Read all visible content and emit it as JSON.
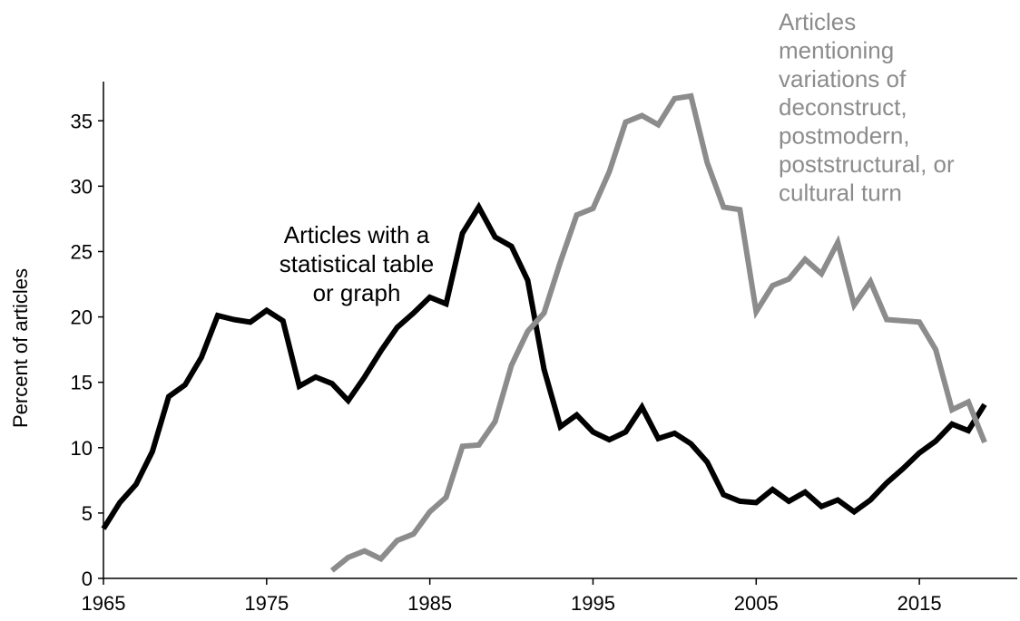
{
  "chart_data": {
    "type": "line",
    "ylabel": "Percent of articles",
    "xlabel": "",
    "xlim": [
      1965,
      2021
    ],
    "ylim": [
      0,
      38
    ],
    "x_ticks": [
      1965,
      1975,
      1985,
      1995,
      2005,
      2015
    ],
    "y_ticks": [
      0,
      5,
      10,
      15,
      20,
      25,
      30,
      35
    ],
    "grid": false,
    "legend": "none",
    "series": [
      {
        "color": "#000000",
        "points": [
          [
            1965,
            3.8
          ],
          [
            1966,
            5.8
          ],
          [
            1967,
            7.2
          ],
          [
            1968,
            9.7
          ],
          [
            1969,
            13.9
          ],
          [
            1970,
            14.8
          ],
          [
            1971,
            16.9
          ],
          [
            1972,
            20.1
          ],
          [
            1973,
            19.8
          ],
          [
            1974,
            19.6
          ],
          [
            1975,
            20.5
          ],
          [
            1976,
            19.7
          ],
          [
            1977,
            14.7
          ],
          [
            1978,
            15.4
          ],
          [
            1979,
            14.9
          ],
          [
            1980,
            13.6
          ],
          [
            1981,
            15.4
          ],
          [
            1982,
            17.4
          ],
          [
            1983,
            19.2
          ],
          [
            1984,
            20.3
          ],
          [
            1985,
            21.5
          ],
          [
            1986,
            21.0
          ],
          [
            1987,
            26.4
          ],
          [
            1988,
            28.4
          ],
          [
            1989,
            26.1
          ],
          [
            1990,
            25.4
          ],
          [
            1991,
            22.8
          ],
          [
            1992,
            16.0
          ],
          [
            1993,
            11.6
          ],
          [
            1994,
            12.5
          ],
          [
            1995,
            11.2
          ],
          [
            1996,
            10.6
          ],
          [
            1997,
            11.2
          ],
          [
            1998,
            13.1
          ],
          [
            1999,
            10.7
          ],
          [
            2000,
            11.1
          ],
          [
            2001,
            10.3
          ],
          [
            2002,
            8.9
          ],
          [
            2003,
            6.4
          ],
          [
            2004,
            5.9
          ],
          [
            2005,
            5.8
          ],
          [
            2006,
            6.8
          ],
          [
            2007,
            5.9
          ],
          [
            2008,
            6.6
          ],
          [
            2009,
            5.5
          ],
          [
            2010,
            6.0
          ],
          [
            2011,
            5.1
          ],
          [
            2012,
            6.0
          ],
          [
            2013,
            7.3
          ],
          [
            2014,
            8.4
          ],
          [
            2015,
            9.6
          ],
          [
            2016,
            10.5
          ],
          [
            2017,
            11.8
          ],
          [
            2018,
            11.3
          ],
          [
            2019,
            13.3
          ]
        ]
      },
      {
        "color": "#8c8c8c",
        "points": [
          [
            1979,
            0.6
          ],
          [
            1980,
            1.6
          ],
          [
            1981,
            2.1
          ],
          [
            1982,
            1.5
          ],
          [
            1983,
            2.9
          ],
          [
            1984,
            3.4
          ],
          [
            1985,
            5.1
          ],
          [
            1986,
            6.2
          ],
          [
            1987,
            10.1
          ],
          [
            1988,
            10.2
          ],
          [
            1989,
            12.0
          ],
          [
            1990,
            16.3
          ],
          [
            1991,
            18.9
          ],
          [
            1992,
            20.3
          ],
          [
            1993,
            24.2
          ],
          [
            1994,
            27.8
          ],
          [
            1995,
            28.3
          ],
          [
            1996,
            31.1
          ],
          [
            1997,
            34.9
          ],
          [
            1998,
            35.4
          ],
          [
            1999,
            34.7
          ],
          [
            2000,
            36.7
          ],
          [
            2001,
            36.9
          ],
          [
            2002,
            31.8
          ],
          [
            2003,
            28.4
          ],
          [
            2004,
            28.2
          ],
          [
            2005,
            20.4
          ],
          [
            2006,
            22.4
          ],
          [
            2007,
            22.9
          ],
          [
            2008,
            24.4
          ],
          [
            2009,
            23.3
          ],
          [
            2010,
            25.7
          ],
          [
            2011,
            20.9
          ],
          [
            2012,
            22.7
          ],
          [
            2013,
            19.8
          ],
          [
            2014,
            19.7
          ],
          [
            2015,
            19.6
          ],
          [
            2016,
            17.5
          ],
          [
            2017,
            12.9
          ],
          [
            2018,
            13.5
          ],
          [
            2019,
            10.4
          ]
        ]
      }
    ],
    "annotations": [
      {
        "color": "#000000",
        "lines": [
          "Articles with a",
          "statistical table",
          "or graph"
        ]
      },
      {
        "color": "#8c8c8c",
        "lines": [
          "Articles",
          "mentioning",
          "variations of",
          "deconstruct,",
          "postmodern,",
          "poststructural, or",
          "cultural turn"
        ]
      }
    ]
  }
}
